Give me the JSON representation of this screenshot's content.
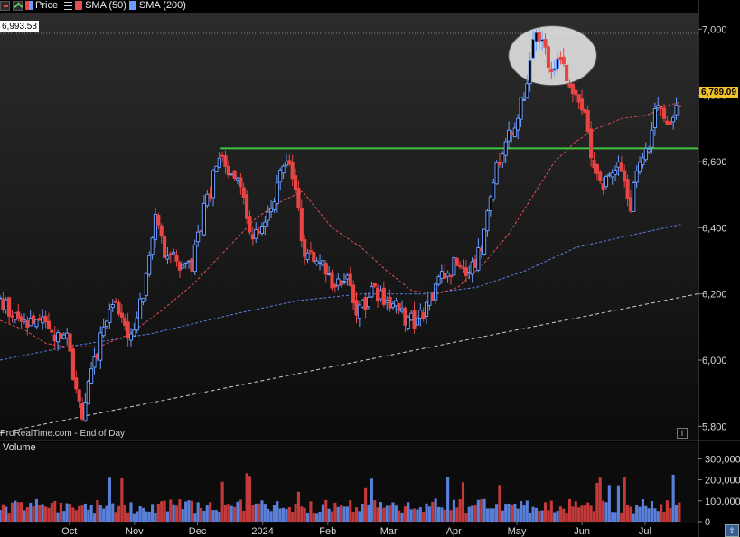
{
  "legend": {
    "price_label": "Price",
    "sma50_label": "SMA (50)",
    "sma200_label": "SMA (200)"
  },
  "price_pane": {
    "high_label": "6,993.53",
    "last_label": "6,789.09",
    "source_label": "ProRealTime.com - End of Day",
    "info_icon": "i"
  },
  "volume_pane": {
    "label": "Volume"
  },
  "colors": {
    "up": "#6a9cff",
    "down": "#e84545",
    "sma50": "#e05050",
    "sma200": "#5b7fe0",
    "resistance": "#3ec43e",
    "trend": "#cccccc"
  },
  "chart_data": {
    "type": "candlestick",
    "price_axis": {
      "ticks": [
        5800,
        6000,
        6200,
        6400,
        6600,
        6800,
        7000
      ],
      "labels": [
        "5,800",
        "6,000",
        "6,200",
        "6,400",
        "6,600",
        "6,800",
        "7,000"
      ],
      "range": [
        5760,
        7050
      ]
    },
    "volume_axis": {
      "ticks": [
        0,
        100000,
        200000,
        300000
      ],
      "labels": [
        "0",
        "100,000",
        "200,000",
        "300,000"
      ],
      "range": [
        0,
        340000
      ]
    },
    "x_labels": [
      "Oct",
      "Nov",
      "Dec",
      "2024",
      "Feb",
      "Mar",
      "Apr",
      "May",
      "Jun",
      "Jul"
    ],
    "x_label_days": [
      21,
      52,
      82,
      113,
      144,
      173,
      204,
      234,
      265,
      295
    ],
    "day_range": [
      -12,
      320
    ],
    "close_path": [
      [
        -12,
        6180
      ],
      [
        -3,
        6110
      ],
      [
        5,
        6120
      ],
      [
        13,
        6080
      ],
      [
        20,
        6100
      ],
      [
        24,
        5900
      ],
      [
        27,
        5840
      ],
      [
        32,
        5960
      ],
      [
        38,
        6130
      ],
      [
        43,
        6190
      ],
      [
        48,
        6080
      ],
      [
        53,
        6100
      ],
      [
        58,
        6280
      ],
      [
        62,
        6420
      ],
      [
        66,
        6320
      ],
      [
        70,
        6330
      ],
      [
        74,
        6260
      ],
      [
        80,
        6300
      ],
      [
        84,
        6420
      ],
      [
        90,
        6560
      ],
      [
        94,
        6600
      ],
      [
        98,
        6580
      ],
      [
        104,
        6510
      ],
      [
        108,
        6340
      ],
      [
        112,
        6420
      ],
      [
        118,
        6480
      ],
      [
        122,
        6600
      ],
      [
        126,
        6600
      ],
      [
        130,
        6480
      ],
      [
        132,
        6340
      ],
      [
        136,
        6310
      ],
      [
        142,
        6310
      ],
      [
        147,
        6210
      ],
      [
        152,
        6260
      ],
      [
        156,
        6170
      ],
      [
        160,
        6150
      ],
      [
        164,
        6210
      ],
      [
        170,
        6180
      ],
      [
        176,
        6160
      ],
      [
        182,
        6120
      ],
      [
        187,
        6110
      ],
      [
        191,
        6160
      ],
      [
        196,
        6230
      ],
      [
        202,
        6260
      ],
      [
        206,
        6320
      ],
      [
        211,
        6250
      ],
      [
        215,
        6310
      ],
      [
        218,
        6350
      ],
      [
        222,
        6500
      ],
      [
        226,
        6620
      ],
      [
        230,
        6690
      ],
      [
        234,
        6720
      ],
      [
        236,
        6770
      ],
      [
        240,
        6880
      ],
      [
        242,
        6960
      ],
      [
        246,
        6970
      ],
      [
        250,
        6890
      ],
      [
        254,
        6910
      ],
      [
        257,
        6880
      ],
      [
        260,
        6840
      ],
      [
        264,
        6780
      ],
      [
        267,
        6730
      ],
      [
        270,
        6570
      ],
      [
        274,
        6530
      ],
      [
        277,
        6560
      ],
      [
        281,
        6590
      ],
      [
        285,
        6560
      ],
      [
        288,
        6470
      ],
      [
        291,
        6570
      ],
      [
        294,
        6600
      ],
      [
        297,
        6650
      ],
      [
        300,
        6740
      ],
      [
        303,
        6770
      ],
      [
        306,
        6720
      ],
      [
        309,
        6760
      ],
      [
        312,
        6789
      ]
    ],
    "sma50": [
      [
        -12,
        6120
      ],
      [
        0,
        6090
      ],
      [
        10,
        6050
      ],
      [
        20,
        6040
      ],
      [
        35,
        6040
      ],
      [
        50,
        6080
      ],
      [
        65,
        6150
      ],
      [
        80,
        6230
      ],
      [
        95,
        6330
      ],
      [
        110,
        6430
      ],
      [
        122,
        6480
      ],
      [
        132,
        6510
      ],
      [
        146,
        6400
      ],
      [
        160,
        6340
      ],
      [
        172,
        6270
      ],
      [
        184,
        6210
      ],
      [
        196,
        6200
      ],
      [
        206,
        6220
      ],
      [
        218,
        6290
      ],
      [
        230,
        6380
      ],
      [
        242,
        6500
      ],
      [
        252,
        6600
      ],
      [
        262,
        6660
      ],
      [
        272,
        6700
      ],
      [
        284,
        6730
      ],
      [
        296,
        6740
      ],
      [
        306,
        6770
      ],
      [
        312,
        6780
      ]
    ],
    "sma200": [
      [
        -12,
        6000
      ],
      [
        20,
        6040
      ],
      [
        60,
        6080
      ],
      [
        100,
        6140
      ],
      [
        130,
        6180
      ],
      [
        160,
        6200
      ],
      [
        190,
        6200
      ],
      [
        215,
        6220
      ],
      [
        238,
        6270
      ],
      [
        262,
        6340
      ],
      [
        290,
        6380
      ],
      [
        312,
        6410
      ]
    ],
    "resistance_level": 6640,
    "resistance_start_day": 93,
    "trend_line": {
      "start": [
        -12,
        5780
      ],
      "end": [
        320,
        6200
      ]
    },
    "trend_start_day": -12,
    "highlight": {
      "center_day": 251,
      "center_price": 6920,
      "rx_days": 21,
      "ry_price": 90
    },
    "volume_seed": 11
  }
}
